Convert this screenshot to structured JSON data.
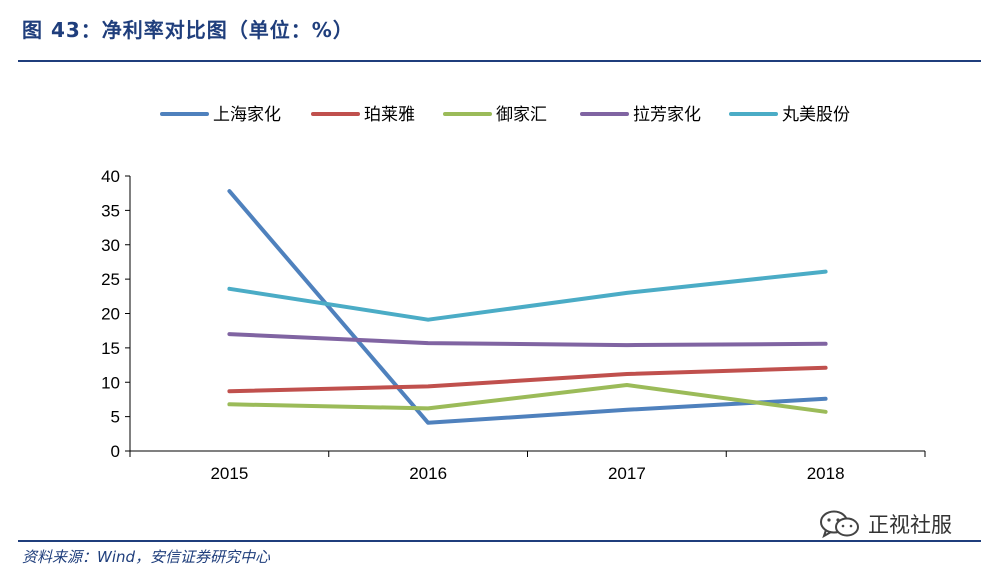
{
  "figure": {
    "title": "图 43：净利率对比图（单位：%）",
    "source": "资料来源：Wind，安信证券研究中心",
    "watermark": "正视社服",
    "watermark_icon": "wechat-icon"
  },
  "colors": {
    "accent": "#1f3e7c",
    "series": [
      "#4f81bd",
      "#c0504d",
      "#9bbb59",
      "#8064a2",
      "#4bacc6"
    ]
  },
  "chart_data": {
    "type": "line",
    "title": "",
    "xlabel": "",
    "ylabel": "",
    "categories": [
      "2015",
      "2016",
      "2017",
      "2018"
    ],
    "ylim": [
      0,
      40
    ],
    "yticks": [
      0,
      5,
      10,
      15,
      20,
      25,
      30,
      35,
      40
    ],
    "grid": false,
    "legend_position": "top",
    "series": [
      {
        "name": "上海家化",
        "values": [
          37.8,
          4.1,
          6.0,
          7.6
        ]
      },
      {
        "name": "珀莱雅",
        "values": [
          8.7,
          9.4,
          11.2,
          12.1
        ]
      },
      {
        "name": "御家汇",
        "values": [
          6.8,
          6.2,
          9.6,
          5.7
        ]
      },
      {
        "name": "拉芳家化",
        "values": [
          17.0,
          15.7,
          15.4,
          15.6
        ]
      },
      {
        "name": "丸美股份",
        "values": [
          23.6,
          19.1,
          23.0,
          26.1
        ]
      }
    ]
  }
}
